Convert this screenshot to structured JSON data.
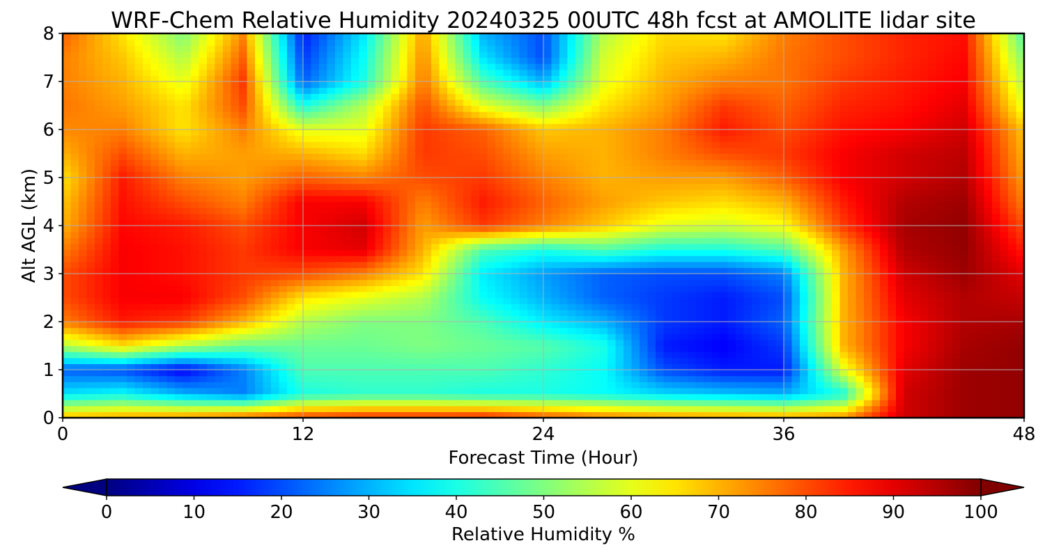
{
  "chart_data": {
    "type": "heatmap",
    "title": "WRF-Chem Relative Humidity 20240325 00UTC 48h fcst at AMOLITE lidar site",
    "xlabel": "Forecast Time (Hour)",
    "ylabel": "Alt AGL (km)",
    "xlim": [
      0,
      48
    ],
    "ylim": [
      0,
      8
    ],
    "x_ticks": [
      0,
      12,
      24,
      36,
      48
    ],
    "y_ticks": [
      0,
      1,
      2,
      3,
      4,
      5,
      6,
      7,
      8
    ],
    "grid": true,
    "colormap": "jet",
    "colorbar": {
      "label": "Relative Humidity %",
      "range": [
        0,
        100
      ],
      "ticks": [
        0,
        10,
        20,
        30,
        40,
        50,
        60,
        70,
        80,
        90,
        100
      ],
      "orientation": "horizontal",
      "extend": "both"
    },
    "x": [
      0,
      3,
      6,
      9,
      12,
      15,
      18,
      21,
      24,
      27,
      30,
      33,
      36,
      39,
      42,
      45,
      48
    ],
    "y": [
      0,
      0.5,
      1,
      1.5,
      2,
      2.5,
      3,
      3.5,
      4,
      4.5,
      5,
      5.5,
      6,
      6.5,
      7,
      7.5,
      8
    ],
    "z": [
      [
        70,
        72,
        74,
        78,
        82,
        84,
        84,
        85,
        80,
        76,
        74,
        73,
        72,
        74,
        92,
        97,
        98
      ],
      [
        35,
        38,
        30,
        25,
        40,
        42,
        42,
        40,
        40,
        38,
        34,
        32,
        30,
        40,
        92,
        97,
        98
      ],
      [
        22,
        20,
        12,
        25,
        45,
        45,
        45,
        45,
        42,
        38,
        20,
        15,
        15,
        60,
        90,
        97,
        98
      ],
      [
        55,
        65,
        55,
        48,
        48,
        48,
        50,
        48,
        46,
        40,
        15,
        12,
        18,
        70,
        88,
        96,
        98
      ],
      [
        75,
        85,
        82,
        70,
        55,
        50,
        50,
        45,
        36,
        30,
        18,
        15,
        22,
        70,
        88,
        95,
        96
      ],
      [
        80,
        88,
        88,
        80,
        65,
        60,
        55,
        38,
        30,
        22,
        18,
        15,
        20,
        70,
        90,
        95,
        93
      ],
      [
        80,
        88,
        86,
        82,
        80,
        75,
        65,
        36,
        28,
        22,
        20,
        20,
        25,
        70,
        92,
        97,
        90
      ],
      [
        75,
        88,
        86,
        82,
        88,
        90,
        70,
        45,
        40,
        45,
        40,
        40,
        45,
        72,
        95,
        98,
        85
      ],
      [
        70,
        87,
        85,
        80,
        88,
        92,
        72,
        82,
        75,
        68,
        60,
        58,
        62,
        82,
        96,
        98,
        80
      ],
      [
        68,
        86,
        80,
        75,
        88,
        88,
        75,
        85,
        78,
        72,
        68,
        66,
        70,
        85,
        95,
        97,
        75
      ],
      [
        65,
        85,
        75,
        72,
        78,
        75,
        80,
        82,
        75,
        70,
        72,
        72,
        78,
        88,
        92,
        95,
        72
      ],
      [
        70,
        80,
        70,
        72,
        70,
        66,
        82,
        80,
        72,
        70,
        75,
        80,
        82,
        88,
        92,
        94,
        70
      ],
      [
        74,
        75,
        65,
        75,
        60,
        60,
        82,
        78,
        68,
        70,
        75,
        85,
        80,
        86,
        88,
        92,
        68
      ],
      [
        76,
        72,
        65,
        80,
        40,
        55,
        80,
        60,
        50,
        65,
        72,
        82,
        78,
        84,
        86,
        90,
        60
      ],
      [
        75,
        70,
        60,
        82,
        22,
        40,
        76,
        45,
        30,
        60,
        70,
        75,
        76,
        82,
        85,
        88,
        55
      ],
      [
        75,
        68,
        55,
        78,
        18,
        38,
        74,
        35,
        20,
        58,
        68,
        70,
        76,
        80,
        84,
        87,
        50
      ],
      [
        78,
        65,
        50,
        74,
        15,
        35,
        72,
        30,
        20,
        55,
        66,
        65,
        75,
        80,
        84,
        86,
        45
      ]
    ]
  }
}
